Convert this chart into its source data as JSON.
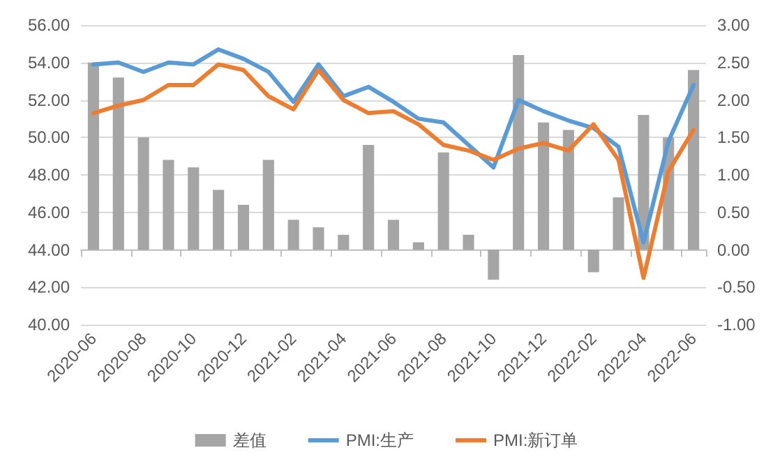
{
  "chart_data": {
    "type": "line",
    "categories": [
      "2020-06",
      null,
      "2020-08",
      null,
      "2020-10",
      null,
      "2020-12",
      null,
      "2021-02",
      null,
      "2021-04",
      null,
      "2021-06",
      null,
      "2021-08",
      null,
      "2021-10",
      null,
      "2021-12",
      null,
      "2022-02",
      null,
      "2022-04",
      null,
      "2022-06"
    ],
    "series": [
      {
        "name": "差值",
        "type": "bar",
        "axis": "y2",
        "color": "#a5a5a5",
        "values": [
          2.5,
          2.3,
          1.5,
          1.2,
          1.1,
          0.8,
          0.6,
          1.2,
          0.4,
          0.3,
          0.2,
          1.4,
          0.4,
          0.1,
          1.3,
          0.2,
          -0.4,
          2.6,
          1.7,
          1.6,
          -0.3,
          0.7,
          1.8,
          1.5,
          2.4
        ]
      },
      {
        "name": "PMI:生产",
        "color": "#5b9bd5",
        "values": [
          53.9,
          54.0,
          53.5,
          54.0,
          53.9,
          54.7,
          54.2,
          53.5,
          51.9,
          53.9,
          52.2,
          52.7,
          51.9,
          51.0,
          50.8,
          49.6,
          48.4,
          52.0,
          51.4,
          50.9,
          50.5,
          49.5,
          44.4,
          49.8,
          52.8
        ]
      },
      {
        "name": "PMI:新订单",
        "color": "#ed7d31",
        "values": [
          51.3,
          51.7,
          52.0,
          52.8,
          52.8,
          53.9,
          53.6,
          52.2,
          51.5,
          53.6,
          52.0,
          51.3,
          51.4,
          50.7,
          49.6,
          49.3,
          48.8,
          49.4,
          49.7,
          49.3,
          50.7,
          48.8,
          42.5,
          48.2,
          50.4
        ]
      }
    ],
    "ylim": [
      40,
      56
    ],
    "yticks": [
      {
        "value": 40,
        "label": "40.00"
      },
      {
        "value": 42,
        "label": "42.00"
      },
      {
        "value": 44,
        "label": "44.00"
      },
      {
        "value": 46,
        "label": "46.00"
      },
      {
        "value": 48,
        "label": "48.00"
      },
      {
        "value": 50,
        "label": "50.00"
      },
      {
        "value": 52,
        "label": "52.00"
      },
      {
        "value": 54,
        "label": "54.00"
      },
      {
        "value": 56,
        "label": "56.00"
      }
    ],
    "y2lim": [
      -1,
      3
    ],
    "y2ticks": [
      {
        "value": -1,
        "label": "-1.00"
      },
      {
        "value": -0.5,
        "label": "-0.50"
      },
      {
        "value": 0,
        "label": "0.00"
      },
      {
        "value": 0.5,
        "label": "0.50"
      },
      {
        "value": 1,
        "label": "1.00"
      },
      {
        "value": 1.5,
        "label": "1.50"
      },
      {
        "value": 2,
        "label": "2.00"
      },
      {
        "value": 2.5,
        "label": "2.50"
      },
      {
        "value": 3,
        "label": "3.00"
      }
    ],
    "grid": "y",
    "legend": "bottom",
    "marker": "none"
  }
}
